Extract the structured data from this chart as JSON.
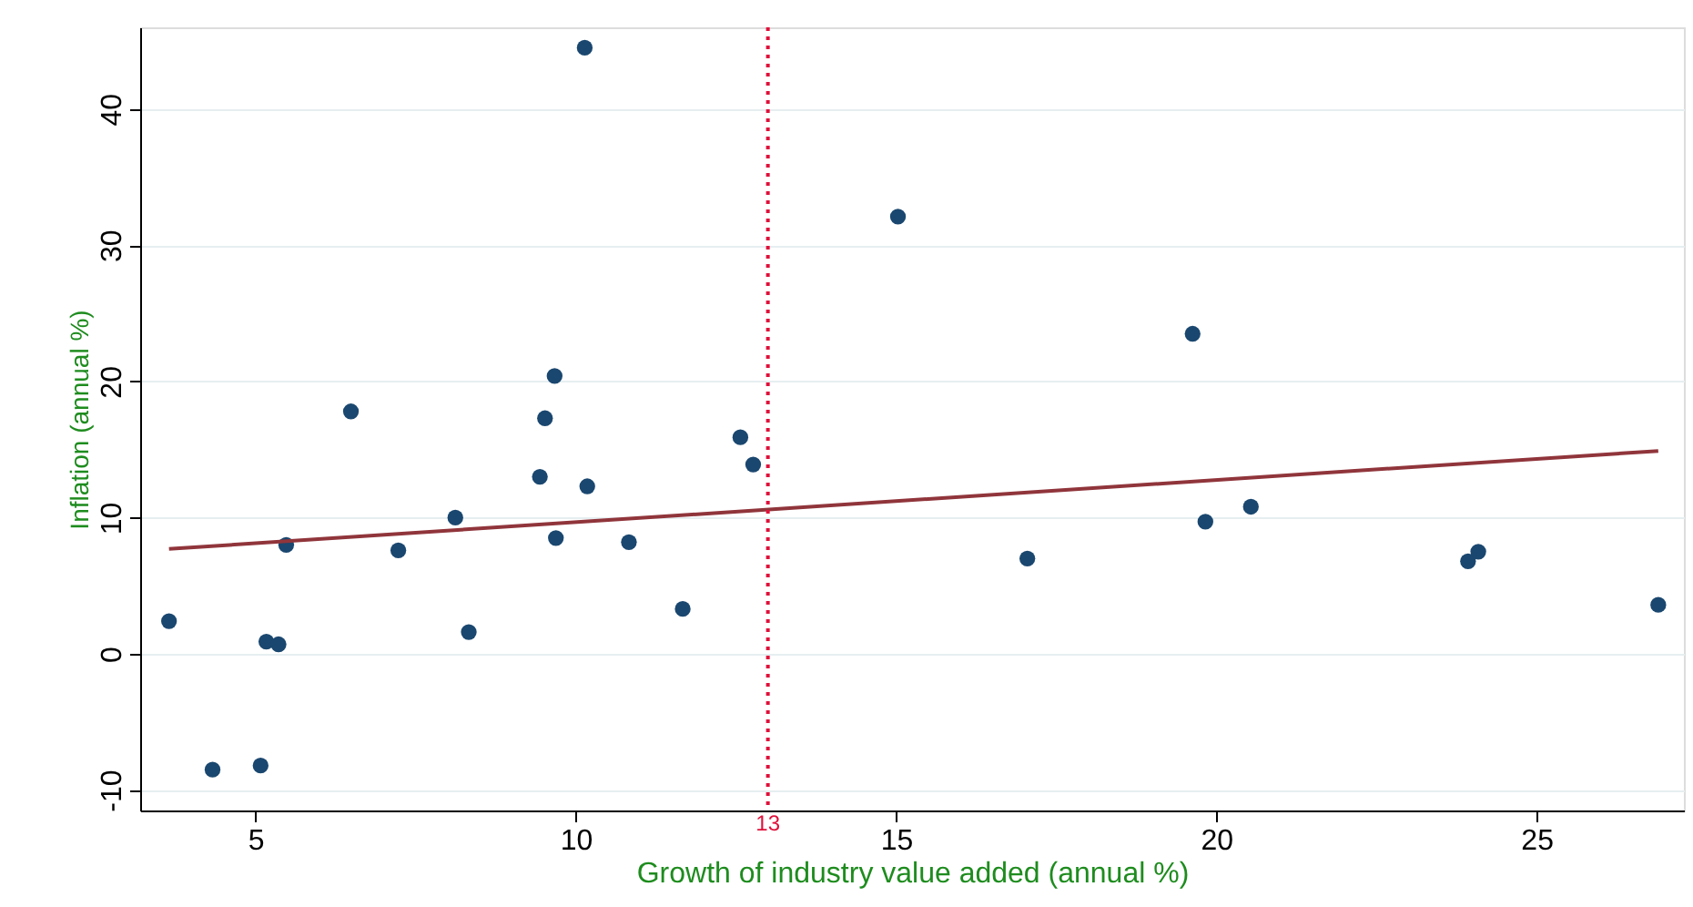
{
  "chart_data": {
    "type": "scatter",
    "xlabel": "Growth of industry value added (annual %)",
    "ylabel": "Inflation (annual %)",
    "xlim": [
      3.2,
      27.3
    ],
    "xticks": [
      5,
      10,
      15,
      20,
      25
    ],
    "ylim": [
      -11.5,
      46
    ],
    "yticks": [
      -10,
      0,
      10,
      20,
      30,
      40
    ],
    "grid": "y",
    "series": [
      {
        "color": "#1a476f",
        "marker": "circle",
        "x": [
          10.14,
          3.65,
          4.33,
          5.08,
          5.17,
          5.36,
          5.48,
          6.49,
          7.23,
          8.12,
          8.33,
          9.44,
          9.52,
          9.67,
          9.69,
          10.18,
          10.83,
          11.67,
          12.57,
          12.77,
          15.03,
          19.63,
          17.05,
          19.83,
          20.54,
          23.93,
          24.09,
          26.9
        ],
        "values": [
          44.5,
          2.4,
          -8.5,
          -8.2,
          0.9,
          0.7,
          8.0,
          17.8,
          7.6,
          10.0,
          1.6,
          13.0,
          17.3,
          20.4,
          8.5,
          12.3,
          8.2,
          3.3,
          15.9,
          13.9,
          32.1,
          23.5,
          7.0,
          9.7,
          10.8,
          6.8,
          7.5,
          3.6
        ]
      },
      {
        "type": "line",
        "color": "#90353b",
        "x": [
          3.65,
          26.9
        ],
        "values": [
          7.7,
          14.9
        ],
        "line_style": "solid",
        "marker": "none"
      }
    ],
    "ref_lines": [
      {
        "axis": "x",
        "value": 13,
        "label": "13",
        "color": "#e0103a",
        "line_style": "dotted"
      }
    ]
  }
}
